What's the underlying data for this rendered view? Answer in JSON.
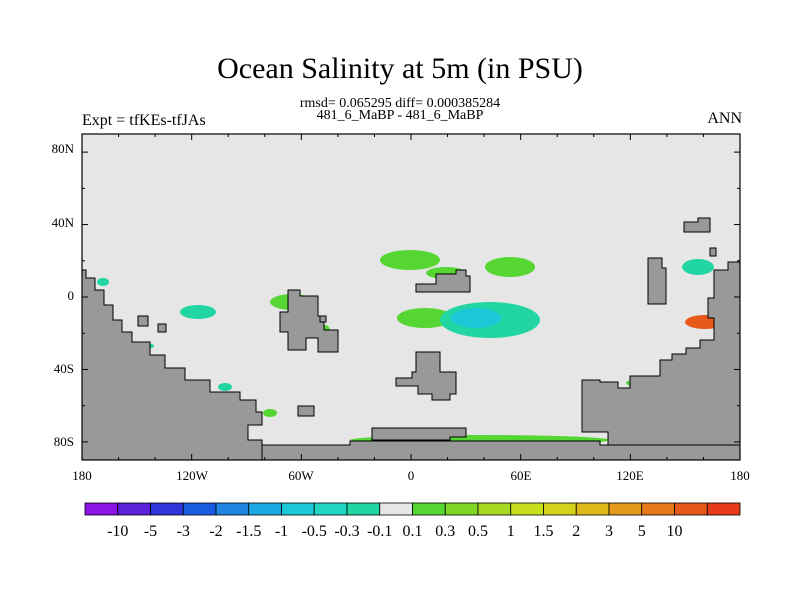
{
  "title": "Ocean Salinity at 5m (in PSU)",
  "subtitle": "rmsd= 0.065295 diff= 0.000385284",
  "subtitle2": "481_6_MaBP - 481_6_MaBP",
  "left_label": "Expt = tfKEs-tfJAs",
  "right_label": "ANN",
  "colors": {
    "ocean": "#e6e6e6",
    "land": "#999999",
    "frame": "#000000"
  },
  "map": {
    "lon_range": [
      -180,
      180
    ],
    "lat_range": [
      -90,
      90
    ],
    "lon_tick_labels": [
      "180",
      "120W",
      "60W",
      "0",
      "60E",
      "120E",
      "180"
    ],
    "lat_tick_labels": [
      "80N",
      "40N",
      "0",
      "40S",
      "80S"
    ]
  },
  "colorbar": {
    "colors": [
      "#8b14e6",
      "#5a23d9",
      "#2f36d9",
      "#1a5cdf",
      "#1e86e0",
      "#1aa9e0",
      "#1cc7d6",
      "#20d7c4",
      "#22d6a3",
      "#e6e6e6",
      "#55d632",
      "#7fd627",
      "#a6d922",
      "#c8df1e",
      "#d6d21a",
      "#dfb81a",
      "#e39a1a",
      "#e67a1a",
      "#e6591a",
      "#e63a1a"
    ],
    "labels": [
      "-10",
      "-5",
      "-3",
      "-2",
      "-1.5",
      "-1",
      "-0.5",
      "-0.3",
      "-0.1",
      "0.1",
      "0.3",
      "0.5",
      "1",
      "1.5",
      "2",
      "3",
      "5",
      "10"
    ]
  },
  "chart_data": {
    "type": "heatmap",
    "variable": "Ocean Salinity at 5m (in PSU)",
    "xlim": [
      -180,
      180
    ],
    "ylim": [
      -90,
      90
    ],
    "anomaly_regions": [
      {
        "lon": 10,
        "lat": 15,
        "value": 0.3
      },
      {
        "lon": 27,
        "lat": 16,
        "value": 0.3
      },
      {
        "lon": 62,
        "lat": 15,
        "value": 0.3
      },
      {
        "lon": -65,
        "lat": -5,
        "value": 0.3
      },
      {
        "lon": -54,
        "lat": 2,
        "value": 0.3
      },
      {
        "lon": 5,
        "lat": -12,
        "value": 0.3
      },
      {
        "lon": 38,
        "lat": -13,
        "value": -0.3
      },
      {
        "lon": 35,
        "lat": -13,
        "value": -0.5
      },
      {
        "lon": -120,
        "lat": -9,
        "value": -0.1
      },
      {
        "lon": 160,
        "lat": 15,
        "value": -0.1
      },
      {
        "lon": 165,
        "lat": -12,
        "value": 5
      },
      {
        "lon": 45,
        "lat": -80,
        "value": 0.3
      },
      {
        "lon": 148,
        "lat": -46,
        "value": 0.3
      },
      {
        "lon": -103,
        "lat": -46,
        "value": -0.1
      },
      {
        "lon": -139,
        "lat": -28,
        "value": -0.1
      }
    ]
  }
}
